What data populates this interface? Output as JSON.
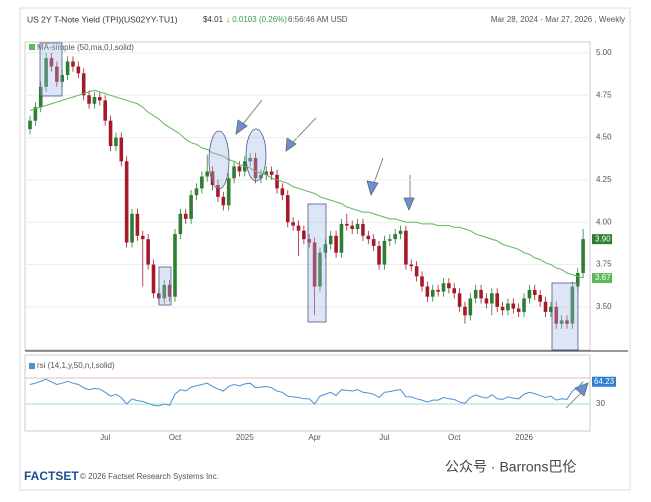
{
  "header": {
    "title": "US 2Y T-Note Yield (TPI)(US02YY-TU1)",
    "price": "$4.01",
    "change": "↓ 0.0103 (0.26%)",
    "time": "6:56:46 AM USD",
    "range": "Mar 28, 2024 - Mar 27, 2026 , Weekly"
  },
  "footer": {
    "logo": "FACTSET",
    "copyright": "© 2026 Factset Research Systems Inc.",
    "watermark": "公众号 · Barrons巴伦"
  },
  "chart_data": [
    {
      "type": "candlestick",
      "legend": "MA-simple (50,ma,0,l,solid)",
      "last_value_label": "3.90",
      "ma_last_label": "3.67",
      "up_color": "#2e7d32",
      "down_color": "#a31b2a",
      "categories": [
        null,
        null,
        null,
        null,
        null,
        null,
        null,
        null,
        null,
        null,
        null,
        null,
        null,
        null,
        "Jul",
        null,
        null,
        null,
        null,
        null,
        null,
        null,
        null,
        null,
        null,
        null,
        null,
        "Oct",
        null,
        null,
        null,
        null,
        null,
        null,
        null,
        null,
        null,
        null,
        null,
        null,
        "2025",
        null,
        null,
        null,
        null,
        null,
        null,
        null,
        null,
        null,
        null,
        null,
        null,
        "Apr",
        null,
        null,
        null,
        null,
        null,
        null,
        null,
        null,
        null,
        null,
        null,
        null,
        "Jul",
        null,
        null,
        null,
        null,
        null,
        null,
        null,
        null,
        null,
        null,
        null,
        null,
        "Oct",
        null,
        null,
        null,
        null,
        null,
        null,
        null,
        null,
        null,
        null,
        null,
        null,
        "2026",
        null,
        null,
        null,
        null,
        null,
        null,
        null,
        null,
        null,
        null,
        null
      ],
      "open": [
        4.55,
        4.6,
        4.68,
        4.8,
        4.97,
        4.92,
        4.83,
        4.87,
        4.95,
        4.92,
        4.88,
        4.75,
        4.7,
        4.74,
        4.72,
        4.6,
        4.45,
        4.5,
        4.36,
        3.88,
        4.05,
        3.92,
        3.9,
        3.75,
        3.58,
        3.55,
        3.63,
        3.56,
        3.93,
        4.05,
        4.02,
        4.16,
        4.2,
        4.27,
        4.3,
        4.22,
        4.15,
        4.1,
        4.26,
        4.33,
        4.3,
        4.36,
        4.38,
        4.26,
        4.28,
        4.3,
        4.28,
        4.2,
        4.16,
        4.0,
        3.98,
        3.95,
        3.9,
        3.88,
        3.62,
        3.82,
        3.87,
        3.92,
        3.82,
        3.99,
        3.98,
        3.96,
        3.99,
        3.92,
        3.9,
        3.86,
        3.75,
        3.89,
        3.9,
        3.93,
        3.95,
        3.75,
        3.74,
        3.68,
        3.62,
        3.56,
        3.6,
        3.59,
        3.64,
        3.61,
        3.58,
        3.5,
        3.45,
        3.55,
        3.6,
        3.55,
        3.52,
        3.58,
        3.5,
        3.48,
        3.52,
        3.49,
        3.47,
        3.55,
        3.6,
        3.57,
        3.53,
        3.47,
        3.5,
        3.4,
        3.42,
        3.4,
        3.62,
        3.7
      ],
      "high": [
        4.63,
        4.71,
        4.83,
        5.0,
        5.0,
        4.95,
        4.9,
        4.98,
        4.98,
        4.95,
        4.91,
        4.78,
        4.77,
        4.77,
        4.75,
        4.63,
        4.53,
        4.53,
        4.39,
        4.08,
        4.08,
        3.95,
        3.93,
        3.78,
        3.61,
        3.66,
        3.66,
        3.96,
        4.08,
        4.08,
        4.19,
        4.23,
        4.3,
        4.4,
        4.33,
        4.25,
        4.18,
        4.29,
        4.36,
        4.36,
        4.39,
        4.41,
        4.41,
        4.31,
        4.33,
        4.33,
        4.31,
        4.23,
        4.19,
        4.03,
        4.01,
        3.98,
        3.93,
        3.91,
        3.85,
        3.9,
        3.95,
        3.95,
        4.02,
        4.05,
        4.01,
        4.02,
        4.02,
        3.95,
        3.93,
        3.89,
        3.92,
        3.93,
        3.96,
        3.98,
        3.98,
        3.78,
        3.77,
        3.71,
        3.65,
        3.63,
        3.63,
        3.67,
        3.67,
        3.64,
        3.61,
        3.53,
        3.58,
        3.63,
        3.63,
        3.58,
        3.61,
        3.61,
        3.53,
        3.55,
        3.55,
        3.52,
        3.58,
        3.63,
        3.63,
        3.6,
        3.56,
        3.53,
        3.53,
        3.45,
        3.45,
        3.65,
        3.73,
        3.96
      ],
      "low": [
        4.52,
        4.57,
        4.65,
        4.77,
        4.89,
        4.8,
        4.8,
        4.84,
        4.89,
        4.85,
        4.72,
        4.67,
        4.67,
        4.69,
        4.57,
        4.42,
        4.42,
        4.33,
        3.85,
        3.85,
        3.89,
        3.62,
        3.72,
        3.55,
        3.52,
        3.52,
        3.53,
        3.53,
        3.9,
        3.99,
        3.99,
        4.13,
        4.17,
        4.24,
        4.19,
        4.12,
        4.07,
        4.07,
        4.23,
        4.27,
        4.27,
        4.33,
        4.23,
        4.23,
        4.25,
        4.25,
        4.17,
        4.13,
        3.97,
        3.95,
        3.8,
        3.87,
        3.85,
        3.45,
        3.59,
        3.79,
        3.84,
        3.79,
        3.79,
        3.95,
        3.93,
        3.93,
        3.89,
        3.87,
        3.83,
        3.72,
        3.72,
        3.86,
        3.87,
        3.9,
        3.72,
        3.71,
        3.65,
        3.59,
        3.53,
        3.53,
        3.56,
        3.56,
        3.58,
        3.55,
        3.47,
        3.4,
        3.42,
        3.52,
        3.52,
        3.49,
        3.45,
        3.47,
        3.45,
        3.45,
        3.46,
        3.44,
        3.44,
        3.52,
        3.54,
        3.5,
        3.44,
        3.44,
        3.37,
        3.37,
        3.37,
        3.37,
        3.59,
        3.67
      ],
      "close": [
        4.6,
        4.68,
        4.8,
        4.97,
        4.92,
        4.83,
        4.87,
        4.95,
        4.92,
        4.88,
        4.75,
        4.7,
        4.74,
        4.72,
        4.6,
        4.45,
        4.5,
        4.36,
        3.88,
        4.05,
        3.92,
        3.9,
        3.75,
        3.58,
        3.55,
        3.63,
        3.56,
        3.93,
        4.05,
        4.02,
        4.16,
        4.2,
        4.27,
        4.3,
        4.22,
        4.15,
        4.1,
        4.26,
        4.33,
        4.3,
        4.36,
        4.38,
        4.26,
        4.28,
        4.3,
        4.28,
        4.2,
        4.16,
        4.0,
        3.98,
        3.95,
        3.9,
        3.88,
        3.62,
        3.82,
        3.87,
        3.92,
        3.82,
        3.99,
        3.98,
        3.96,
        3.99,
        3.92,
        3.9,
        3.86,
        3.75,
        3.89,
        3.9,
        3.93,
        3.95,
        3.75,
        3.74,
        3.68,
        3.62,
        3.56,
        3.6,
        3.59,
        3.64,
        3.61,
        3.58,
        3.5,
        3.45,
        3.55,
        3.6,
        3.55,
        3.52,
        3.58,
        3.5,
        3.48,
        3.52,
        3.49,
        3.47,
        3.55,
        3.6,
        3.57,
        3.53,
        3.47,
        3.5,
        3.4,
        3.42,
        3.4,
        3.62,
        3.7,
        3.9
      ],
      "series": [
        {
          "name": "MA-simple",
          "color": "#5cb85c",
          "values": [
            4.66,
            4.67,
            4.68,
            4.69,
            4.7,
            4.71,
            4.72,
            4.73,
            4.74,
            4.75,
            4.76,
            4.77,
            4.78,
            4.77,
            4.76,
            4.75,
            4.74,
            4.73,
            4.72,
            4.71,
            4.7,
            4.68,
            4.65,
            4.63,
            4.61,
            4.58,
            4.56,
            4.54,
            4.52,
            4.49,
            4.47,
            4.46,
            4.44,
            4.43,
            4.41,
            4.4,
            4.39,
            4.37,
            4.36,
            4.34,
            4.33,
            4.32,
            4.3,
            4.29,
            4.28,
            4.26,
            4.25,
            4.24,
            4.23,
            4.21,
            4.2,
            4.19,
            4.18,
            4.17,
            4.15,
            4.14,
            4.13,
            4.12,
            4.11,
            4.09,
            4.08,
            4.07,
            4.06,
            4.06,
            4.05,
            4.04,
            4.03,
            4.02,
            4.02,
            4.01,
            4.0,
            4.0,
            4.0,
            3.99,
            3.99,
            3.99,
            3.98,
            3.98,
            3.98,
            3.97,
            3.97,
            3.96,
            3.95,
            3.93,
            3.92,
            3.91,
            3.9,
            3.89,
            3.87,
            3.86,
            3.85,
            3.84,
            3.82,
            3.81,
            3.79,
            3.78,
            3.76,
            3.75,
            3.73,
            3.72,
            3.7,
            3.69,
            3.68,
            3.67
          ]
        }
      ],
      "ylim": [
        3.245,
        5.065
      ],
      "yticks": [
        {
          "value": 3.5,
          "label": "3.50"
        },
        {
          "value": 3.75,
          "label": "3.75"
        },
        {
          "value": 4,
          "label": "4.00"
        },
        {
          "value": 4.25,
          "label": "4.25"
        },
        {
          "value": 4.5,
          "label": "4.50"
        },
        {
          "value": 4.75,
          "label": "4.75"
        },
        {
          "value": 5,
          "label": "5.00"
        }
      ],
      "grid": true
    },
    {
      "type": "line",
      "legend": "rsi (14,1,y,50,n,l,solid)",
      "color": "#4a90d9",
      "ylim": [
        0,
        100
      ],
      "yticks": [
        30
      ],
      "levels": [
        30,
        70
      ],
      "values": [
        60,
        62,
        65,
        68,
        64,
        60,
        62,
        65,
        62,
        60,
        55,
        52,
        54,
        53,
        48,
        42,
        45,
        40,
        30,
        38,
        35,
        34,
        31,
        28,
        27,
        30,
        28,
        45,
        52,
        50,
        56,
        58,
        60,
        62,
        57,
        53,
        50,
        57,
        60,
        58,
        61,
        62,
        55,
        56,
        57,
        55,
        50,
        48,
        42,
        41,
        40,
        38,
        38,
        30,
        42,
        45,
        48,
        43,
        52,
        51,
        50,
        52,
        48,
        47,
        45,
        40,
        48,
        49,
        51,
        52,
        41,
        41,
        38,
        36,
        33,
        36,
        36,
        40,
        38,
        37,
        33,
        31,
        40,
        44,
        41,
        39,
        44,
        38,
        37,
        41,
        39,
        38,
        45,
        48,
        46,
        43,
        40,
        42,
        36,
        38,
        37,
        50,
        55,
        64.23
      ]
    }
  ]
}
